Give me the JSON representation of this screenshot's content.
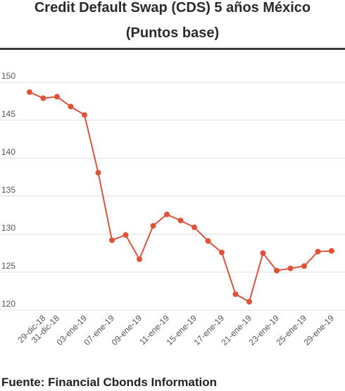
{
  "header": {
    "title": "Credit Default Swap (CDS) 5 años México",
    "subtitle": "(Puntos base)"
  },
  "footer": {
    "source": "Fuente: Financial Cbonds Information"
  },
  "colors": {
    "line": "#e0533a",
    "grid": "#dcdcdc",
    "axis_text": "#555555",
    "title": "#2b2b2b"
  },
  "chart_data": {
    "type": "line",
    "title": "Credit Default Swap (CDS) 5 años México",
    "subtitle": "(Puntos base)",
    "xlabel": "",
    "ylabel": "",
    "ylim": [
      120,
      150
    ],
    "yticks": [
      120,
      125,
      130,
      135,
      140,
      145,
      150
    ],
    "grid": true,
    "legend": "none",
    "x_tick_labels": [
      "29-dic-18",
      "31-dic-18",
      "03-ene-19",
      "07-ene-19",
      "09-ene-19",
      "11-ene-19",
      "15-ene-19",
      "17-ene-19",
      "21-ene-19",
      "23-ene-19",
      "25-ene-19",
      "29-ene-19"
    ],
    "series": [
      {
        "name": "",
        "points": [
          {
            "x": "28-dic-18",
            "y": 148.7
          },
          {
            "x": "29-dic-18",
            "y": 147.9
          },
          {
            "x": "31-dic-18",
            "y": 148.1
          },
          {
            "x": "02-ene-19",
            "y": 146.8
          },
          {
            "x": "03-ene-19",
            "y": 145.7
          },
          {
            "x": "04-ene-19",
            "y": 138.1
          },
          {
            "x": "07-ene-19",
            "y": 129.2
          },
          {
            "x": "08-ene-19",
            "y": 129.9
          },
          {
            "x": "09-ene-19",
            "y": 126.7
          },
          {
            "x": "10-ene-19",
            "y": 131.1
          },
          {
            "x": "11-ene-19",
            "y": 132.6
          },
          {
            "x": "14-ene-19",
            "y": 131.8
          },
          {
            "x": "15-ene-19",
            "y": 130.9
          },
          {
            "x": "16-ene-19",
            "y": 129.1
          },
          {
            "x": "17-ene-19",
            "y": 127.6
          },
          {
            "x": "18-ene-19",
            "y": 122.1
          },
          {
            "x": "21-ene-19",
            "y": 121.1
          },
          {
            "x": "22-ene-19",
            "y": 127.5
          },
          {
            "x": "23-ene-19",
            "y": 125.2
          },
          {
            "x": "24-ene-19",
            "y": 125.5
          },
          {
            "x": "25-ene-19",
            "y": 125.8
          },
          {
            "x": "28-ene-19",
            "y": 127.7
          },
          {
            "x": "29-ene-19",
            "y": 127.8
          }
        ]
      }
    ]
  }
}
